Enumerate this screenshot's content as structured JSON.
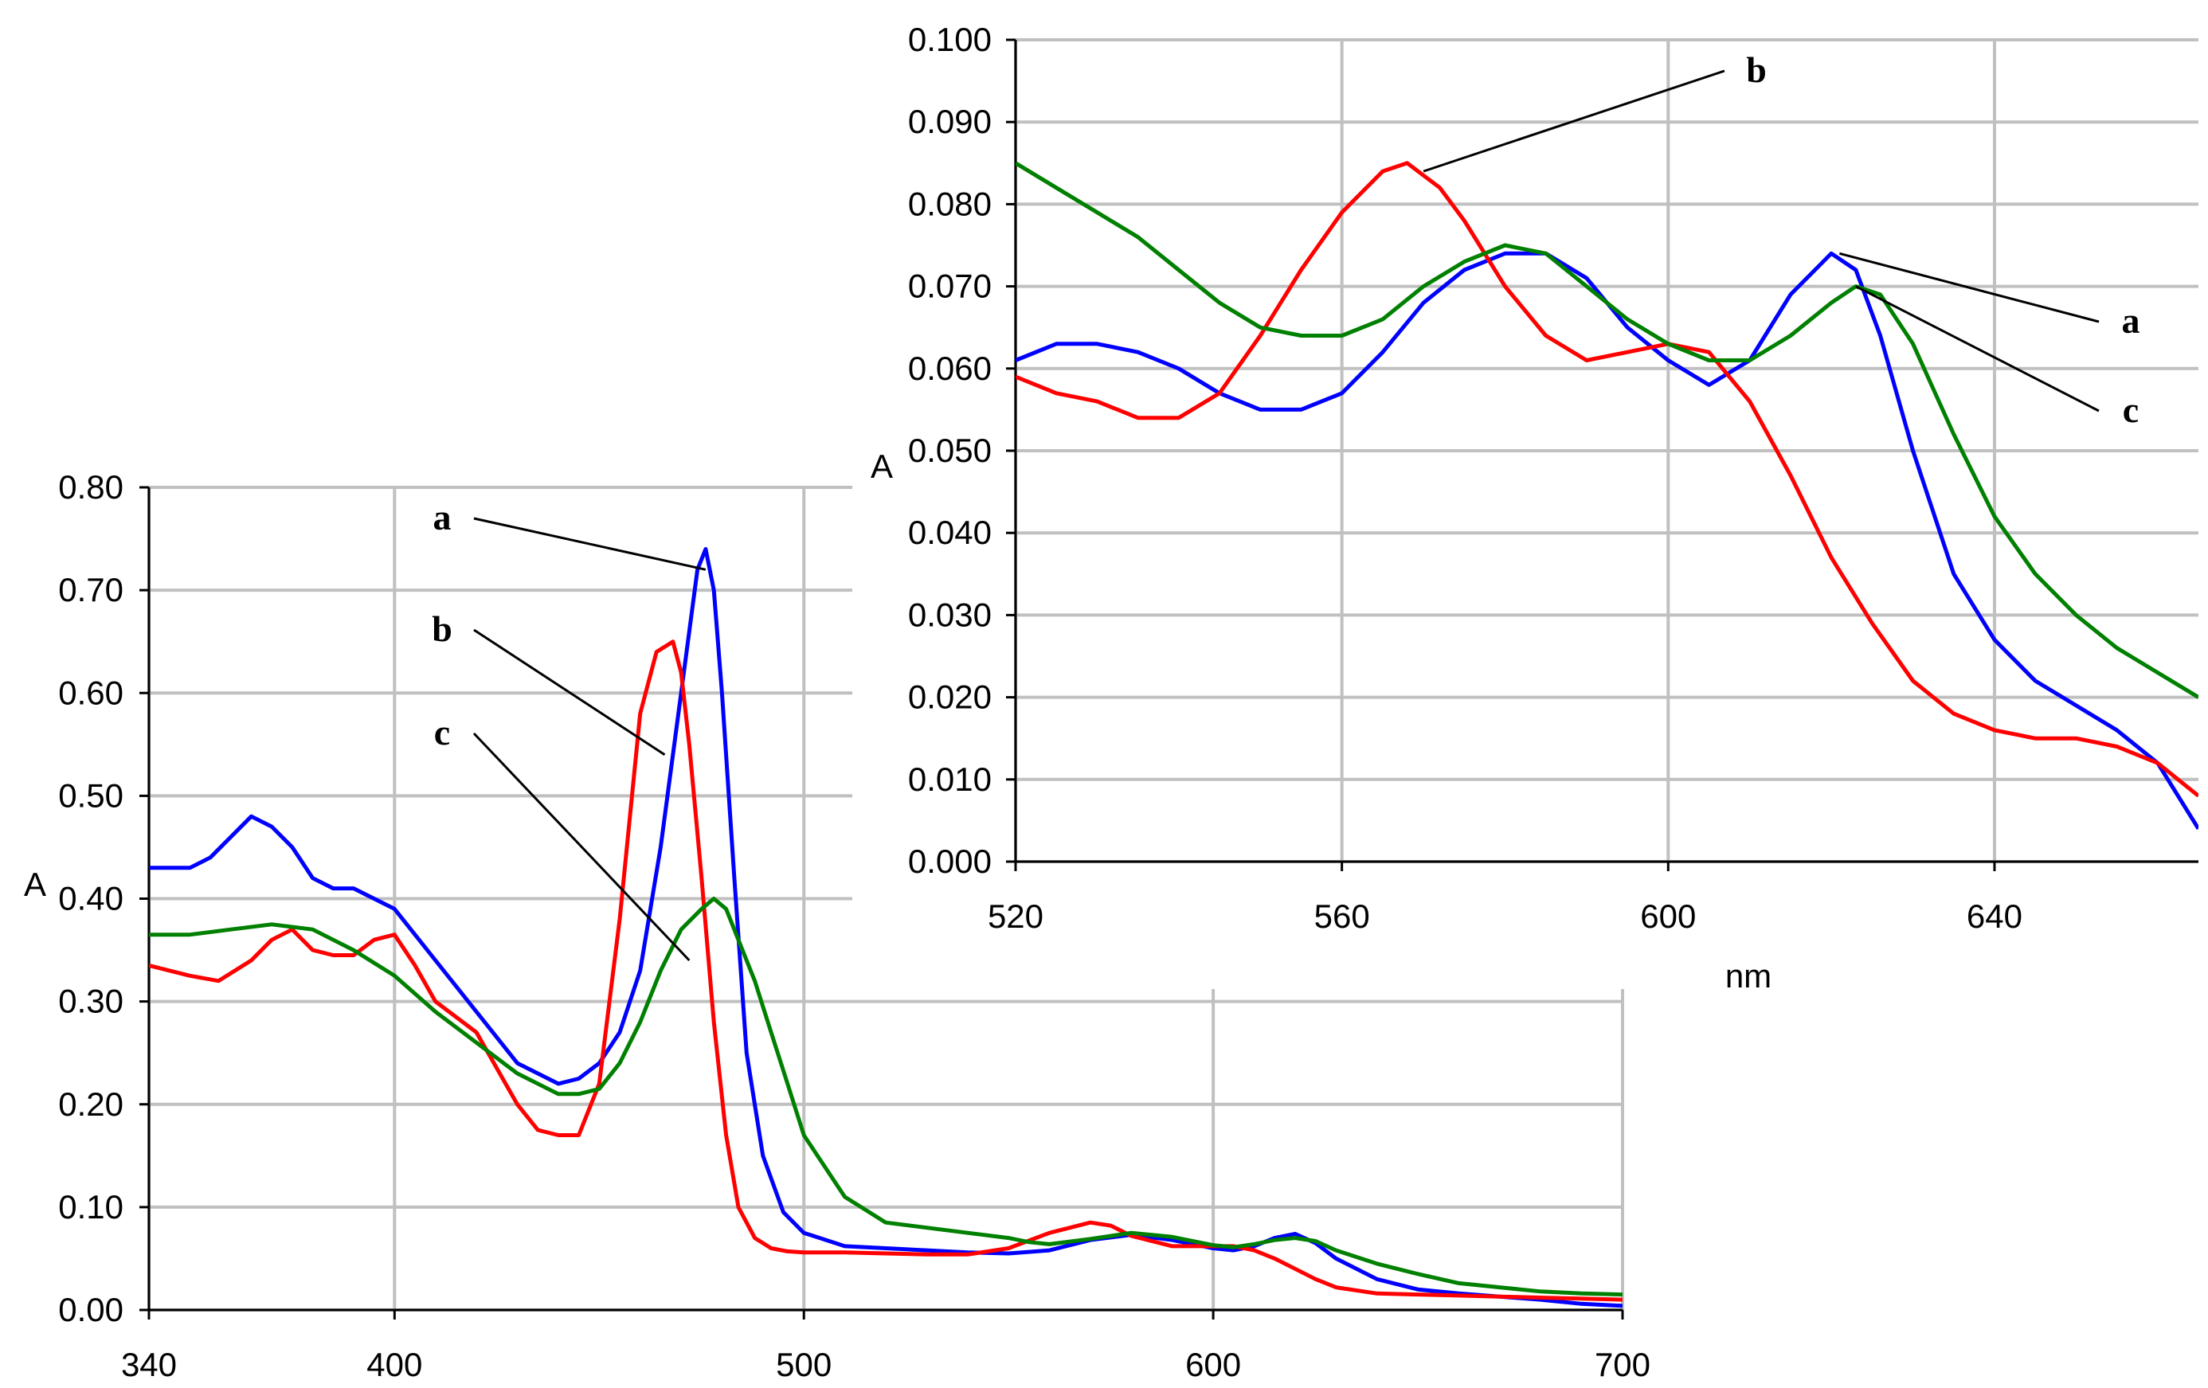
{
  "chart_data": [
    {
      "id": "main",
      "type": "line",
      "xlabel": "",
      "ylabel": "A",
      "xlim": [
        340,
        700
      ],
      "ylim": [
        0,
        0.8
      ],
      "x_ticks": [
        340,
        400,
        500,
        600,
        700
      ],
      "y_ticks": [
        "0.00",
        "0.10",
        "0.20",
        "0.30",
        "0.40",
        "0.50",
        "0.60",
        "0.70",
        "0.80"
      ],
      "grid": true,
      "series": [
        {
          "label": "a",
          "color": "#0000ff",
          "x": [
            340,
            350,
            355,
            360,
            365,
            370,
            375,
            380,
            385,
            390,
            400,
            410,
            420,
            430,
            440,
            445,
            450,
            455,
            460,
            465,
            470,
            474,
            476,
            478,
            480,
            483,
            486,
            490,
            495,
            500,
            510,
            520,
            530,
            540,
            550,
            560,
            570,
            580,
            590,
            600,
            605,
            610,
            615,
            620,
            625,
            630,
            640,
            650,
            660,
            670,
            680,
            690,
            700
          ],
          "y": [
            0.43,
            0.43,
            0.44,
            0.46,
            0.48,
            0.47,
            0.45,
            0.42,
            0.41,
            0.41,
            0.39,
            0.34,
            0.29,
            0.24,
            0.22,
            0.225,
            0.24,
            0.27,
            0.33,
            0.45,
            0.6,
            0.72,
            0.74,
            0.7,
            0.6,
            0.42,
            0.25,
            0.15,
            0.095,
            0.075,
            0.062,
            0.06,
            0.058,
            0.056,
            0.055,
            0.058,
            0.068,
            0.073,
            0.068,
            0.06,
            0.058,
            0.062,
            0.07,
            0.074,
            0.065,
            0.05,
            0.03,
            0.02,
            0.016,
            0.013,
            0.01,
            0.006,
            0.004
          ]
        },
        {
          "label": "b",
          "color": "#ff0000",
          "x": [
            340,
            350,
            357,
            365,
            370,
            375,
            380,
            385,
            390,
            395,
            400,
            405,
            410,
            420,
            430,
            435,
            440,
            445,
            450,
            455,
            460,
            464,
            468,
            470,
            472,
            475,
            478,
            481,
            484,
            488,
            492,
            496,
            500,
            510,
            520,
            530,
            540,
            550,
            560,
            565,
            570,
            575,
            580,
            590,
            600,
            605,
            610,
            615,
            620,
            625,
            630,
            640,
            650,
            660,
            670,
            680,
            690,
            700
          ],
          "y": [
            0.335,
            0.325,
            0.32,
            0.34,
            0.36,
            0.37,
            0.35,
            0.345,
            0.345,
            0.36,
            0.365,
            0.335,
            0.3,
            0.27,
            0.2,
            0.175,
            0.17,
            0.17,
            0.22,
            0.38,
            0.58,
            0.64,
            0.65,
            0.62,
            0.55,
            0.42,
            0.28,
            0.17,
            0.1,
            0.07,
            0.06,
            0.057,
            0.056,
            0.056,
            0.055,
            0.054,
            0.054,
            0.06,
            0.075,
            0.08,
            0.085,
            0.082,
            0.072,
            0.062,
            0.062,
            0.062,
            0.058,
            0.05,
            0.04,
            0.03,
            0.022,
            0.016,
            0.015,
            0.014,
            0.013,
            0.012,
            0.011,
            0.01
          ]
        },
        {
          "label": "c",
          "color": "#008000",
          "x": [
            340,
            350,
            360,
            370,
            380,
            390,
            400,
            410,
            420,
            430,
            440,
            445,
            450,
            455,
            460,
            465,
            470,
            475,
            478,
            481,
            484,
            488,
            492,
            496,
            500,
            510,
            520,
            530,
            540,
            550,
            555,
            560,
            570,
            580,
            590,
            600,
            605,
            610,
            615,
            620,
            625,
            630,
            640,
            650,
            660,
            670,
            680,
            690,
            700
          ],
          "y": [
            0.365,
            0.365,
            0.37,
            0.375,
            0.37,
            0.35,
            0.325,
            0.29,
            0.26,
            0.23,
            0.21,
            0.21,
            0.215,
            0.24,
            0.28,
            0.33,
            0.37,
            0.39,
            0.4,
            0.39,
            0.36,
            0.32,
            0.27,
            0.22,
            0.17,
            0.11,
            0.085,
            0.08,
            0.075,
            0.07,
            0.066,
            0.064,
            0.069,
            0.075,
            0.071,
            0.063,
            0.061,
            0.064,
            0.068,
            0.07,
            0.067,
            0.058,
            0.045,
            0.035,
            0.026,
            0.022,
            0.018,
            0.016,
            0.015
          ]
        }
      ],
      "annotations": [
        {
          "text": "a",
          "series": "a",
          "point": [
            476,
            0.72
          ]
        },
        {
          "text": "b",
          "series": "b",
          "point": [
            466,
            0.54
          ]
        },
        {
          "text": "c",
          "series": "c",
          "point": [
            472,
            0.34
          ]
        }
      ]
    },
    {
      "id": "inset",
      "type": "line",
      "xlabel": "nm",
      "ylabel": "A",
      "xlim": [
        520,
        665
      ],
      "ylim": [
        0,
        0.1
      ],
      "x_ticks": [
        520,
        560,
        600,
        640
      ],
      "y_ticks": [
        "0.000",
        "0.010",
        "0.020",
        "0.030",
        "0.040",
        "0.050",
        "0.060",
        "0.070",
        "0.080",
        "0.090",
        "0.100"
      ],
      "grid": true,
      "series": [
        {
          "label": "a",
          "color": "#0000ff",
          "x": [
            520,
            525,
            530,
            535,
            540,
            545,
            550,
            555,
            560,
            565,
            570,
            575,
            580,
            585,
            590,
            595,
            600,
            605,
            610,
            615,
            620,
            623,
            626,
            630,
            635,
            640,
            645,
            650,
            655,
            660,
            665
          ],
          "y": [
            0.061,
            0.063,
            0.063,
            0.062,
            0.06,
            0.057,
            0.055,
            0.055,
            0.057,
            0.062,
            0.068,
            0.072,
            0.074,
            0.074,
            0.071,
            0.065,
            0.061,
            0.058,
            0.061,
            0.069,
            0.074,
            0.072,
            0.064,
            0.05,
            0.035,
            0.027,
            0.022,
            0.019,
            0.016,
            0.012,
            0.004
          ]
        },
        {
          "label": "b",
          "color": "#ff0000",
          "x": [
            520,
            525,
            530,
            535,
            540,
            545,
            550,
            555,
            560,
            565,
            568,
            572,
            575,
            580,
            585,
            590,
            595,
            600,
            605,
            610,
            615,
            620,
            625,
            630,
            635,
            640,
            645,
            650,
            655,
            660,
            665
          ],
          "y": [
            0.059,
            0.057,
            0.056,
            0.054,
            0.054,
            0.057,
            0.064,
            0.072,
            0.079,
            0.084,
            0.085,
            0.082,
            0.078,
            0.07,
            0.064,
            0.061,
            0.062,
            0.063,
            0.062,
            0.056,
            0.047,
            0.037,
            0.029,
            0.022,
            0.018,
            0.016,
            0.015,
            0.015,
            0.014,
            0.012,
            0.008
          ]
        },
        {
          "label": "c",
          "color": "#008000",
          "x": [
            520,
            525,
            530,
            535,
            540,
            545,
            550,
            555,
            560,
            565,
            570,
            575,
            580,
            585,
            590,
            595,
            600,
            605,
            610,
            615,
            620,
            623,
            626,
            630,
            635,
            640,
            645,
            650,
            655,
            660,
            665
          ],
          "y": [
            0.085,
            0.082,
            0.079,
            0.076,
            0.072,
            0.068,
            0.065,
            0.064,
            0.064,
            0.066,
            0.07,
            0.073,
            0.075,
            0.074,
            0.07,
            0.066,
            0.063,
            0.061,
            0.061,
            0.064,
            0.068,
            0.07,
            0.069,
            0.063,
            0.052,
            0.042,
            0.035,
            0.03,
            0.026,
            0.023,
            0.02
          ]
        }
      ],
      "annotations": [
        {
          "text": "a",
          "series": "a",
          "point": [
            621,
            0.074
          ]
        },
        {
          "text": "b",
          "series": "b",
          "point": [
            570,
            0.084
          ]
        },
        {
          "text": "c",
          "series": "c",
          "point": [
            623,
            0.07
          ]
        }
      ]
    }
  ]
}
